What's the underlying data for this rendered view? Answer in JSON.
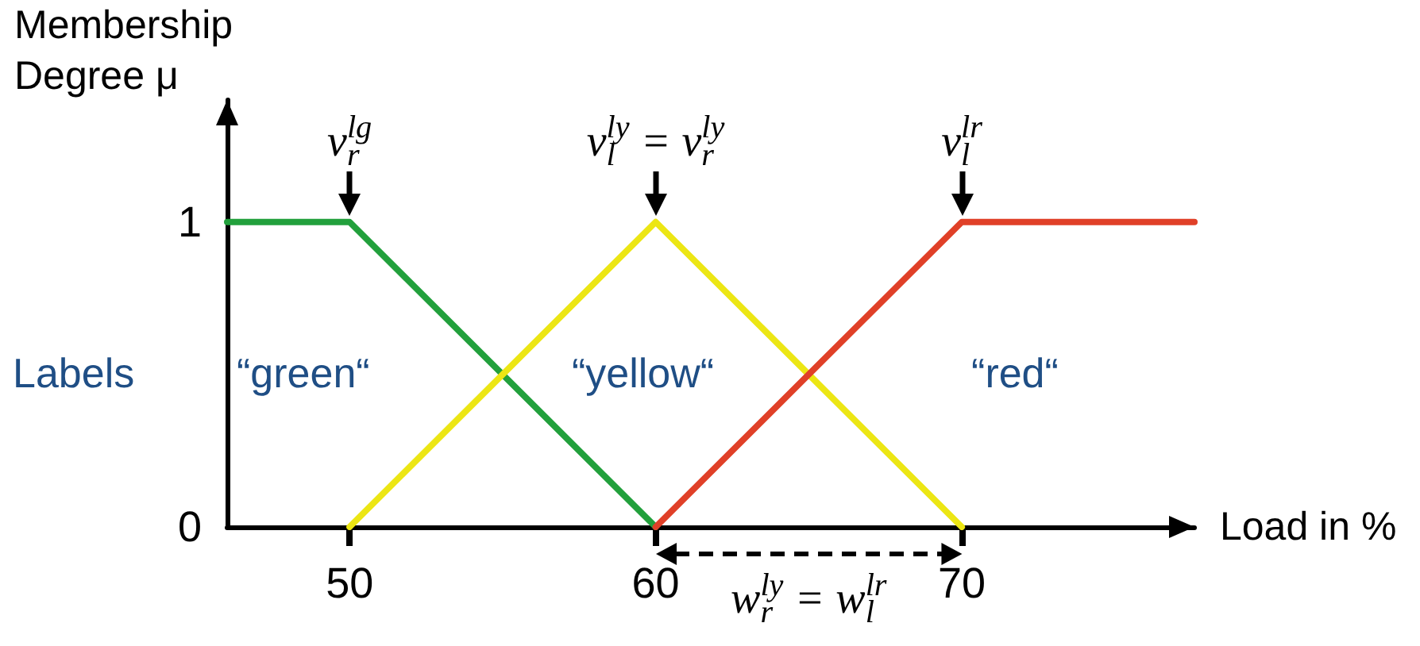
{
  "chart_data": {
    "type": "line",
    "xlabel": "Load in %",
    "ylabel": "Membership Degree μ",
    "series": [
      {
        "name": "“green“",
        "color": "#22a03c",
        "x": [
          46,
          50,
          60
        ],
        "values": [
          1,
          1,
          0
        ]
      },
      {
        "name": "“yellow“",
        "color": "#ece614",
        "x": [
          50,
          60,
          70
        ],
        "values": [
          0,
          1,
          0
        ]
      },
      {
        "name": "“red“",
        "color": "#e04028",
        "x": [
          60,
          70,
          77.6
        ],
        "values": [
          0,
          1,
          1
        ]
      }
    ],
    "xlim": [
      46,
      77.6
    ],
    "xticks": [
      50,
      60,
      70
    ],
    "ylim": [
      0,
      1.4
    ],
    "yticks": [
      0,
      1
    ],
    "grid": false,
    "marker": "none",
    "line_style": "solid",
    "annotations": [
      "Labels",
      {
        "text": "v$_{r}$$^{lg}$",
        "x": 50,
        "y": 1
      },
      {
        "text": "v$_{l}$$^{ly}$ = v$_{r}$$^{ly}$",
        "x": 60,
        "y": 1
      },
      {
        "text": "v$_{l}$$^{lr}$",
        "x": 70,
        "y": 1
      },
      "w$_{r}$$^{ly}$ = w$_{l}$$^{lr}$"
    ]
  }
}
